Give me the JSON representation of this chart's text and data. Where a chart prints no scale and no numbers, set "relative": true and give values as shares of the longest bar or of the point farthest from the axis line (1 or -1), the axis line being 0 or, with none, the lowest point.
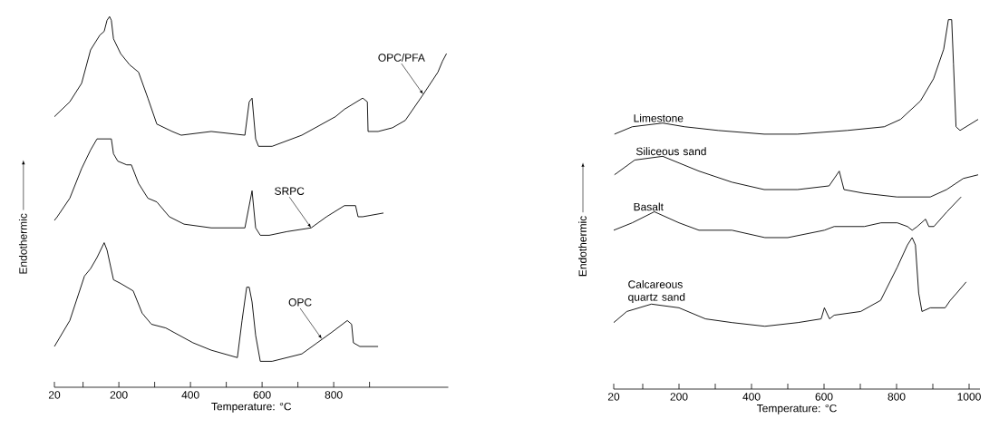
{
  "chart_data": [
    {
      "type": "line",
      "xlabel": "Temperature: °C",
      "ylabel": "Endothermic",
      "relative": true,
      "xlim": [
        20,
        1120
      ],
      "xticks": [
        20,
        {
          "value": 100,
          "label": null
        },
        200,
        {
          "value": 300,
          "label": null
        },
        400,
        {
          "value": 500,
          "label": null
        },
        600,
        {
          "value": 700,
          "label": null
        },
        800,
        {
          "value": 900,
          "label": null
        }
      ],
      "annotations": [
        {
          "text": "OPC/PFA",
          "x": 1050,
          "y": 0.79
        },
        {
          "text": "SRPC",
          "x": 737,
          "y": 0.43
        },
        {
          "text": "OPC",
          "x": 767,
          "y": 0.13
        }
      ],
      "series": [
        {
          "color": "#000000",
          "x": [
            20,
            63,
            96,
            121,
            147,
            159,
            167,
            174,
            179,
            185,
            205,
            230,
            255,
            281,
            306,
            349,
            374,
            458,
            552,
            564,
            572,
            582,
            590,
            628,
            711,
            805,
            830,
            881,
            894,
            896,
            924,
            964,
            1000,
            1050,
            1091,
            1104,
            1115
          ],
          "values": [
            0.73,
            0.77,
            0.82,
            0.91,
            0.95,
            0.96,
            0.99,
            1.0,
            0.99,
            0.94,
            0.9,
            0.87,
            0.85,
            0.78,
            0.71,
            0.69,
            0.68,
            0.69,
            0.68,
            0.77,
            0.78,
            0.67,
            0.65,
            0.65,
            0.68,
            0.73,
            0.75,
            0.78,
            0.77,
            0.69,
            0.69,
            0.7,
            0.72,
            0.79,
            0.85,
            0.88,
            0.9
          ]
        },
        {
          "color": "#000000",
          "x": [
            20,
            28,
            63,
            96,
            121,
            139,
            167,
            179,
            185,
            197,
            222,
            235,
            255,
            281,
            306,
            341,
            382,
            458,
            552,
            564,
            572,
            582,
            595,
            620,
            670,
            737,
            780,
            830,
            850,
            861,
            868,
            881,
            939
          ],
          "values": [
            0.45,
            0.46,
            0.51,
            0.59,
            0.64,
            0.67,
            0.67,
            0.67,
            0.63,
            0.61,
            0.6,
            0.6,
            0.55,
            0.51,
            0.5,
            0.46,
            0.44,
            0.43,
            0.43,
            0.49,
            0.53,
            0.43,
            0.41,
            0.41,
            0.42,
            0.43,
            0.46,
            0.49,
            0.49,
            0.49,
            0.46,
            0.46,
            0.47
          ]
        },
        {
          "color": "#000000",
          "x": [
            20,
            63,
            104,
            121,
            139,
            159,
            167,
            185,
            205,
            240,
            265,
            291,
            331,
            407,
            458,
            531,
            544,
            557,
            564,
            572,
            582,
            595,
            628,
            711,
            754,
            797,
            838,
            850,
            855,
            873,
            924
          ],
          "values": [
            0.11,
            0.18,
            0.3,
            0.32,
            0.35,
            0.39,
            0.37,
            0.29,
            0.28,
            0.26,
            0.2,
            0.17,
            0.16,
            0.12,
            0.1,
            0.08,
            0.18,
            0.27,
            0.27,
            0.23,
            0.14,
            0.07,
            0.07,
            0.09,
            0.12,
            0.15,
            0.18,
            0.17,
            0.12,
            0.11,
            0.11
          ]
        }
      ]
    },
    {
      "type": "line",
      "xlabel": "Temperature: °C",
      "ylabel": "Endothermic",
      "relative": true,
      "xlim": [
        20,
        1030
      ],
      "xticks": [
        20,
        {
          "value": 100,
          "label": null
        },
        200,
        {
          "value": 300,
          "label": null
        },
        400,
        {
          "value": 500,
          "label": null
        },
        600,
        {
          "value": 700,
          "label": null
        },
        800,
        {
          "value": 900,
          "label": null
        },
        1000
      ],
      "series": [
        {
          "name": "Limestone",
          "color": "#000000",
          "x": [
            22,
            71,
            155,
            216,
            308,
            435,
            527,
            664,
            766,
            811,
            866,
            902,
            930,
            943,
            952,
            957,
            964,
            975,
            1025
          ],
          "values": [
            0.69,
            0.71,
            0.72,
            0.71,
            0.7,
            0.69,
            0.69,
            0.7,
            0.71,
            0.73,
            0.78,
            0.84,
            0.92,
            1.0,
            1.0,
            0.88,
            0.71,
            0.7,
            0.73
          ]
        },
        {
          "name": "Siliceous sand",
          "color": "#000000",
          "x": [
            22,
            78,
            155,
            255,
            346,
            435,
            527,
            614,
            628,
            642,
            655,
            710,
            801,
            893,
            938,
            984,
            1025
          ],
          "values": [
            0.58,
            0.62,
            0.63,
            0.59,
            0.56,
            0.54,
            0.54,
            0.55,
            0.57,
            0.59,
            0.54,
            0.53,
            0.52,
            0.52,
            0.54,
            0.57,
            0.58
          ]
        },
        {
          "name": "Basalt",
          "color": "#000000",
          "x": [
            20,
            71,
            132,
            200,
            255,
            269,
            346,
            437,
            500,
            601,
            628,
            711,
            757,
            802,
            830,
            843,
            857,
            880,
            889,
            903,
            939,
            978
          ],
          "values": [
            0.43,
            0.45,
            0.48,
            0.45,
            0.43,
            0.43,
            0.43,
            0.41,
            0.41,
            0.43,
            0.44,
            0.44,
            0.45,
            0.45,
            0.44,
            0.43,
            0.44,
            0.46,
            0.44,
            0.44,
            0.48,
            0.52
          ]
        },
        {
          "name": "Calcareous quartz sand",
          "color": "#000000",
          "x": [
            20,
            56,
            124,
            200,
            273,
            346,
            437,
            528,
            592,
            601,
            615,
            628,
            701,
            756,
            802,
            830,
            843,
            852,
            861,
            870,
            893,
            934,
            948,
            966,
            992
          ],
          "values": [
            0.18,
            0.21,
            0.23,
            0.22,
            0.19,
            0.18,
            0.17,
            0.18,
            0.19,
            0.22,
            0.19,
            0.2,
            0.21,
            0.24,
            0.33,
            0.39,
            0.41,
            0.39,
            0.26,
            0.21,
            0.22,
            0.22,
            0.24,
            0.26,
            0.29
          ]
        }
      ]
    }
  ]
}
